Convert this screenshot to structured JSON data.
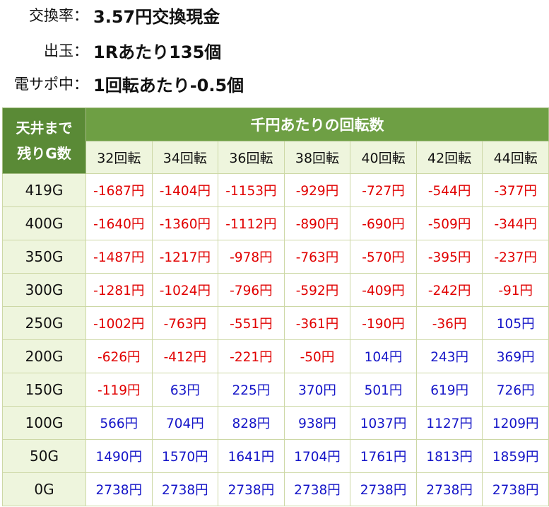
{
  "info": [
    {
      "label": "交換率：",
      "value": "3.57円交換現金"
    },
    {
      "label": "出玉：",
      "value": "1Rあたり135個"
    },
    {
      "label": "電サポ中：",
      "value": "1回転あたり-0.5個"
    }
  ],
  "table": {
    "corner_line1": "天井まで",
    "corner_line2": "残りG数",
    "group_header": "千円あたりの回転数",
    "columns": [
      "32回転",
      "34回転",
      "36回転",
      "38回転",
      "40回転",
      "42回転",
      "44回転"
    ],
    "rows": [
      {
        "label": "419G",
        "cells": [
          "-1687円",
          "-1404円",
          "-1153円",
          "-929円",
          "-727円",
          "-544円",
          "-377円"
        ]
      },
      {
        "label": "400G",
        "cells": [
          "-1640円",
          "-1360円",
          "-1112円",
          "-890円",
          "-690円",
          "-509円",
          "-344円"
        ]
      },
      {
        "label": "350G",
        "cells": [
          "-1487円",
          "-1217円",
          "-978円",
          "-763円",
          "-570円",
          "-395円",
          "-237円"
        ]
      },
      {
        "label": "300G",
        "cells": [
          "-1281円",
          "-1024円",
          "-796円",
          "-592円",
          "-409円",
          "-242円",
          "-91円"
        ]
      },
      {
        "label": "250G",
        "cells": [
          "-1002円",
          "-763円",
          "-551円",
          "-361円",
          "-190円",
          "-36円",
          "105円"
        ]
      },
      {
        "label": "200G",
        "cells": [
          "-626円",
          "-412円",
          "-221円",
          "-50円",
          "104円",
          "243円",
          "369円"
        ]
      },
      {
        "label": "150G",
        "cells": [
          "-119円",
          "63円",
          "225円",
          "370円",
          "501円",
          "619円",
          "726円"
        ]
      },
      {
        "label": "100G",
        "cells": [
          "566円",
          "704円",
          "828円",
          "938円",
          "1037円",
          "1127円",
          "1209円"
        ]
      },
      {
        "label": "50G",
        "cells": [
          "1490円",
          "1570円",
          "1641円",
          "1704円",
          "1761円",
          "1813円",
          "1859円"
        ]
      },
      {
        "label": "0G",
        "cells": [
          "2738円",
          "2738円",
          "2738円",
          "2738円",
          "2738円",
          "2738円",
          "2738円"
        ]
      }
    ],
    "colors": {
      "header_dark": "#5a8a36",
      "header": "#6e9f44",
      "header_light": "#eef5dd",
      "negative": "#e10000",
      "positive": "#1515c8"
    }
  }
}
